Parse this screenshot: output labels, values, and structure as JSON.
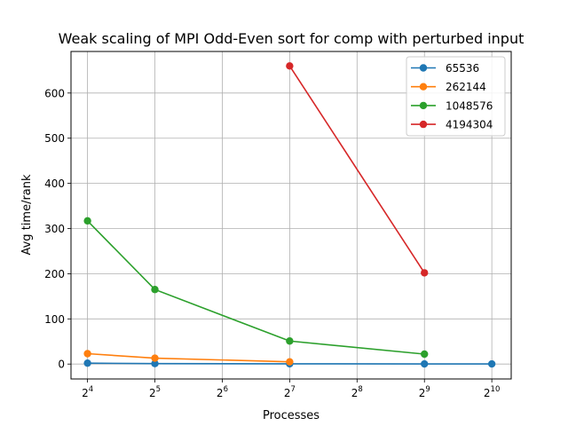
{
  "chart_data": {
    "type": "line",
    "title": "Weak scaling of MPI Odd-Even sort for comp with perturbed input",
    "xlabel": "Processes",
    "ylabel": "Avg time/rank",
    "x_scale": "log2",
    "xlim": [
      13.5,
      1250
    ],
    "ylim": [
      -33,
      692
    ],
    "x_ticks": [
      {
        "value": 16,
        "base": "2",
        "exp": "4"
      },
      {
        "value": 32,
        "base": "2",
        "exp": "5"
      },
      {
        "value": 64,
        "base": "2",
        "exp": "6"
      },
      {
        "value": 128,
        "base": "2",
        "exp": "7"
      },
      {
        "value": 256,
        "base": "2",
        "exp": "8"
      },
      {
        "value": 512,
        "base": "2",
        "exp": "9"
      },
      {
        "value": 1024,
        "base": "2",
        "exp": "10"
      }
    ],
    "y_ticks": [
      0,
      100,
      200,
      300,
      400,
      500,
      600
    ],
    "grid": true,
    "legend_position": "top-right",
    "series": [
      {
        "name": "65536",
        "color": "#1f77b4",
        "x": [
          16,
          32,
          128,
          512,
          1024
        ],
        "y": [
          2,
          1,
          0.5,
          0.3,
          0.3
        ]
      },
      {
        "name": "262144",
        "color": "#ff7f0e",
        "x": [
          16,
          32,
          128
        ],
        "y": [
          23,
          13,
          5
        ]
      },
      {
        "name": "1048576",
        "color": "#2ca02c",
        "x": [
          16,
          32,
          128,
          512
        ],
        "y": [
          317,
          165,
          51,
          22
        ]
      },
      {
        "name": "4194304",
        "color": "#d62728",
        "x": [
          128,
          512
        ],
        "y": [
          660,
          202
        ]
      }
    ]
  }
}
